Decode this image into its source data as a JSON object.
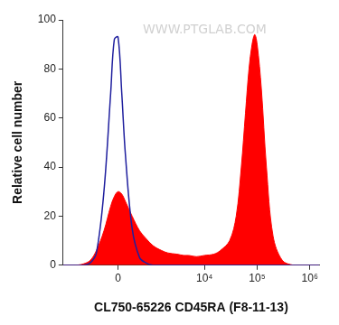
{
  "chart_data": {
    "type": "line",
    "annotations": [
      "WWW.PTGLAB.COM"
    ],
    "x_label": "CL750-65226 CD45RA (F8-11-13)",
    "y_label": "Relative cell number",
    "x": [
      -2500,
      -1500,
      -1000,
      -700,
      -500,
      -300,
      -150,
      -75,
      0,
      75,
      150,
      300,
      500,
      700,
      1000,
      1500,
      2000,
      3000,
      4000,
      5000,
      7000,
      10000,
      15000,
      20000,
      30000,
      40000,
      50000,
      60000,
      70000,
      80000,
      90000,
      100000,
      120000,
      150000,
      200000,
      300000,
      500000,
      1000000,
      1500000
    ],
    "series": [
      {
        "color": "#1f1f9e",
        "type": "line",
        "values": [
          0,
          0,
          0,
          1,
          5,
          30,
          70,
          92,
          93,
          70,
          45,
          15,
          3,
          1,
          0,
          0,
          0,
          0,
          0,
          0,
          0,
          0,
          0,
          0,
          0,
          0,
          0,
          0,
          0,
          0,
          0,
          0,
          0,
          0,
          0,
          0,
          0,
          0,
          0
        ]
      },
      {
        "color": "#ff0000",
        "type": "area",
        "values": [
          0,
          0,
          0.5,
          2,
          6,
          14,
          24,
          28,
          30,
          29,
          26,
          20,
          14,
          11,
          8,
          6,
          5,
          4.5,
          4,
          4,
          3.5,
          4,
          4.5,
          6,
          10,
          20,
          40,
          62,
          80,
          90,
          94,
          90,
          72,
          40,
          12,
          2,
          0,
          0,
          0
        ]
      }
    ],
    "xlim": [
      -2500,
      1500000
    ],
    "xticks": [
      0,
      {
        "value": 10000,
        "label": "10⁴"
      },
      {
        "value": 100000,
        "label": "10⁵"
      },
      {
        "value": 1000000,
        "label": "10⁶"
      }
    ],
    "ylim": [
      0,
      100
    ],
    "yticks": [
      0,
      20,
      40,
      60,
      80,
      100
    ],
    "grid": false
  }
}
